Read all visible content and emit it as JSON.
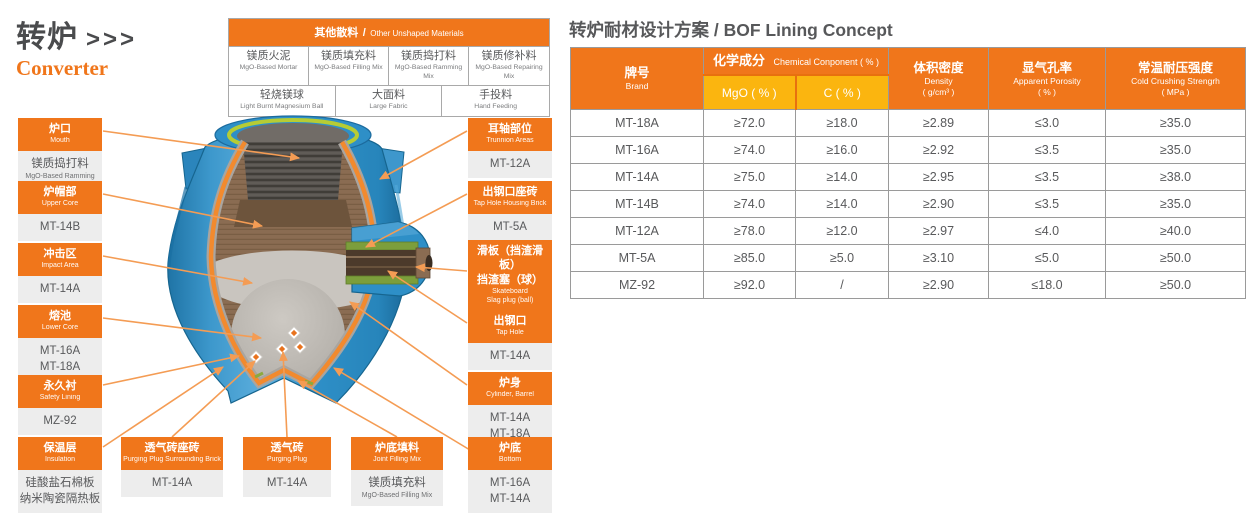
{
  "page": {
    "title_cn": "转炉",
    "title_arrows": ">>>",
    "title_en": "Converter"
  },
  "colors": {
    "accent_orange": "#F0761B",
    "subheader_yellow": "#FBB50F",
    "shell_blue": "#2E8FC7",
    "lining_brown": "#8A6C52"
  },
  "unshaped_table": {
    "header_cn": "其他散料",
    "header_sep": "/",
    "header_en": "Other Unshaped Materials",
    "row1": [
      {
        "cn": "镁质火泥",
        "en": "MgO-Based Mortar"
      },
      {
        "cn": "镁质填充料",
        "en": "MgO-Based Filling Mix"
      },
      {
        "cn": "镁质捣打料",
        "en": "MgO-Based Ramming Mix"
      },
      {
        "cn": "镁质修补料",
        "en": "MgO-Based Repairing Mix"
      }
    ],
    "row2": [
      {
        "cn": "轻烧镁球",
        "en": "Light Burnt Magnesium Ball"
      },
      {
        "cn": "大面料",
        "en": "Large Fabric"
      },
      {
        "cn": "手投料",
        "en": "Hand Feeding"
      }
    ]
  },
  "lining_table": {
    "title": "转炉耐材设计方案 / BOF Lining Concept",
    "headers": {
      "brand_cn": "牌号",
      "brand_en": "Brand",
      "chem_cn": "化学成分",
      "chem_en": "Chemical Conponent ( % )",
      "mgo": "MgO ( % )",
      "c": "C ( % )",
      "density_cn": "体积密度",
      "density_en": "Density",
      "density_unit": "( g/cm³ )",
      "porosity_cn": "显气孔率",
      "porosity_en": "Apparent Porosity",
      "porosity_unit": "( % )",
      "ccs_cn": "常温耐压强度",
      "ccs_en": "Cold Crushing Strengrh",
      "ccs_unit": "( MPa )"
    },
    "rows": [
      [
        "MT-18A",
        "≥72.0",
        "≥18.0",
        "≥2.89",
        "≤3.0",
        "≥35.0"
      ],
      [
        "MT-16A",
        "≥74.0",
        "≥16.0",
        "≥2.92",
        "≤3.5",
        "≥35.0"
      ],
      [
        "MT-14A",
        "≥75.0",
        "≥14.0",
        "≥2.95",
        "≤3.5",
        "≥38.0"
      ],
      [
        "MT-14B",
        "≥74.0",
        "≥14.0",
        "≥2.90",
        "≤3.5",
        "≥35.0"
      ],
      [
        "MT-12A",
        "≥78.0",
        "≥12.0",
        "≥2.97",
        "≤4.0",
        "≥40.0"
      ],
      [
        "MT-5A",
        "≥85.0",
        "≥5.0",
        "≥3.10",
        "≤5.0",
        "≥50.0"
      ],
      [
        "MZ-92",
        "≥92.0",
        "/",
        "≥2.90",
        "≤18.0",
        "≥50.0"
      ]
    ]
  },
  "diagram_labels": {
    "left": [
      {
        "cn": "炉口",
        "en": "Mouth",
        "body": [
          {
            "t": "镁质捣打料"
          },
          {
            "t": "MgO-Based Ramming Mix",
            "small": true
          }
        ]
      },
      {
        "cn": "炉帽部",
        "en": "Upper Core",
        "body": [
          {
            "t": "MT-14B"
          }
        ]
      },
      {
        "cn": "冲击区",
        "en": "Impact Area",
        "body": [
          {
            "t": "MT-14A"
          }
        ]
      },
      {
        "cn": "熔池",
        "en": "Lower Core",
        "body": [
          {
            "t": "MT-16A"
          },
          {
            "t": "MT-18A"
          }
        ]
      },
      {
        "cn": "永久衬",
        "en": "Safety Lining",
        "body": [
          {
            "t": "MZ-92"
          }
        ]
      },
      {
        "cn": "保温层",
        "en": "Insulation",
        "body": [
          {
            "t": "硅酸盐石棉板"
          },
          {
            "t": "纳米陶瓷隔热板"
          }
        ]
      }
    ],
    "right": [
      {
        "cn": "耳轴部位",
        "en": "Trunnion Areas",
        "body": [
          {
            "t": "MT-12A"
          }
        ]
      },
      {
        "cn": "出钢口座砖",
        "en": "Tap Hole Housing Brick",
        "body": [
          {
            "t": "MT-5A"
          }
        ]
      },
      {
        "cn": "滑板（挡渣滑板）\n挡渣塞（球）",
        "en": "Skateboard\nSlag plug (ball)",
        "body": []
      },
      {
        "cn": "出钢口",
        "en": "Tap Hole",
        "body": [
          {
            "t": "MT-14A"
          }
        ]
      },
      {
        "cn": "炉身",
        "en": "Cylinder, Barrel",
        "body": [
          {
            "t": "MT-14A"
          },
          {
            "t": "MT-18A"
          }
        ]
      },
      {
        "cn": "炉底",
        "en": "Bottom",
        "body": [
          {
            "t": "MT-16A"
          },
          {
            "t": "MT-14A"
          }
        ]
      }
    ],
    "bottom": [
      {
        "cn": "透气砖座砖",
        "en": "Purging Plug Surrounding Brick",
        "body": [
          {
            "t": "MT-14A"
          }
        ]
      },
      {
        "cn": "透气砖",
        "en": "Purging Plug",
        "body": [
          {
            "t": "MT-14A"
          }
        ]
      },
      {
        "cn": "炉底填料",
        "en": "Joint Filling Mix",
        "body": [
          {
            "t": "镁质填充料"
          },
          {
            "t": "MgO-Based Filling Mix",
            "small": true
          }
        ]
      }
    ]
  }
}
